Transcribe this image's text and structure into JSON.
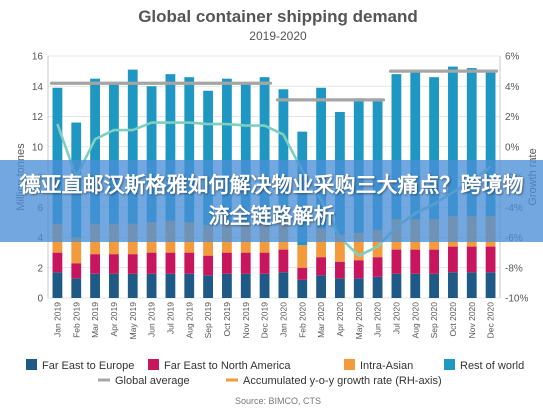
{
  "chart_data": {
    "type": "bar",
    "title": "Global container shipping demand",
    "subtitle": "2019-2020",
    "ylabel": "Million tonnes",
    "y2label": "Growth rate",
    "ylim": [
      0,
      16
    ],
    "y2lim": [
      -10,
      6
    ],
    "yticks": [
      "0",
      "2",
      "4",
      "6",
      "8",
      "10",
      "12",
      "14",
      "16"
    ],
    "y2ticks": [
      "-10%",
      "-8%",
      "-6%",
      "-4%",
      "-2%",
      "0%",
      "2%",
      "4%",
      "6%"
    ],
    "grid": true,
    "categories": [
      "Jan 2019",
      "Feb 2019",
      "Mar 2019",
      "Apr 2019",
      "May 2019",
      "Jun 2019",
      "Jul 2019",
      "Aug 2019",
      "Sep 2019",
      "Oct 2019",
      "Nov 2019",
      "Dec 2019",
      "Jan 2020",
      "Feb 2020",
      "Mar 2020",
      "Apr 2020",
      "May 2020",
      "Jun 2020",
      "Jul 2020",
      "Aug 2020",
      "Sep 2020",
      "Oct 2020",
      "Nov 2020",
      "Dec 2020"
    ],
    "series": [
      {
        "name": "Far East to Europe",
        "color": "#1f5a86",
        "values": [
          1.7,
          1.3,
          1.6,
          1.6,
          1.6,
          1.6,
          1.6,
          1.6,
          1.5,
          1.6,
          1.6,
          1.6,
          1.7,
          1.2,
          1.5,
          1.3,
          1.3,
          1.4,
          1.6,
          1.6,
          1.6,
          1.7,
          1.7,
          1.7
        ]
      },
      {
        "name": "Far East to North America",
        "color": "#c7165d",
        "values": [
          1.3,
          1.0,
          1.3,
          1.3,
          1.3,
          1.4,
          1.4,
          1.4,
          1.3,
          1.4,
          1.4,
          1.4,
          1.5,
          0.8,
          1.2,
          1.1,
          1.2,
          1.3,
          1.6,
          1.6,
          1.6,
          1.7,
          1.7,
          1.7
        ]
      },
      {
        "name": "Intra-Asian",
        "color": "#f39a3c",
        "values": [
          1.9,
          1.7,
          2.0,
          2.0,
          2.0,
          2.0,
          2.1,
          2.0,
          2.0,
          2.0,
          2.0,
          2.0,
          2.0,
          1.5,
          1.9,
          1.8,
          1.8,
          1.8,
          2.0,
          2.0,
          2.0,
          2.0,
          2.0,
          2.0
        ]
      },
      {
        "name": "Rest of world",
        "color": "#1f97c3",
        "values": [
          9.0,
          7.6,
          9.6,
          9.3,
          10.2,
          9.0,
          9.7,
          9.6,
          8.9,
          9.5,
          9.2,
          9.6,
          8.6,
          7.5,
          9.3,
          8.1,
          8.9,
          8.5,
          9.6,
          9.9,
          9.4,
          9.9,
          9.8,
          9.7
        ]
      }
    ],
    "global_average": {
      "name": "Global average",
      "color": "#a5a5a5",
      "segments": [
        {
          "from": "Jan 2019",
          "to": "Dec 2019",
          "value": 14.2
        },
        {
          "from": "Jan 2020",
          "to": "Jun 2020",
          "value": 13.1
        },
        {
          "from": "Jul 2020",
          "to": "Dec 2020",
          "value": 15.0
        }
      ]
    },
    "growth_rate": {
      "name": "Accumulated y-o-y growth rate (RH-axis)",
      "color": "#7ecfc0",
      "values": [
        1.5,
        -2.0,
        0.5,
        1.1,
        1.1,
        1.6,
        1.6,
        1.6,
        1.5,
        1.5,
        1.4,
        1.4,
        0.8,
        -1.6,
        -3.5,
        -6.0,
        -7.2,
        -6.6,
        -5.3,
        -4.4,
        -3.8,
        -3.0,
        -2.3,
        -1.3
      ]
    },
    "legend_position": "bottom",
    "source": "Source: BIMCO, CTS"
  },
  "overlay": {
    "text": "德亚直邮汉斯格雅如何解决物业采购三大痛点？跨境物流全链路解析"
  }
}
